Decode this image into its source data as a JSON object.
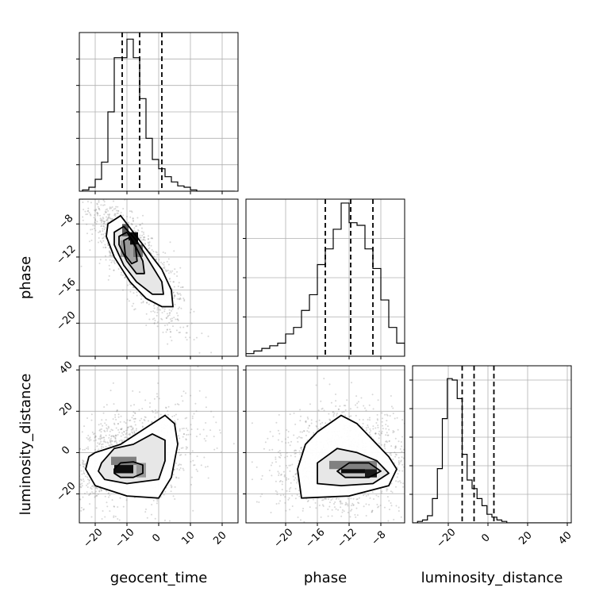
{
  "chart_data": [
    {
      "type": "histogram",
      "panel": "geocent_time",
      "bin_start": -24,
      "bin_width": 2,
      "counts": [
        1,
        3,
        9,
        22,
        60,
        101,
        101,
        115,
        101,
        70,
        40,
        24,
        17,
        11,
        7,
        4,
        3,
        1,
        0,
        0,
        0,
        0,
        0,
        0
      ],
      "xlim": [
        -25,
        25
      ],
      "ylim": [
        0,
        120
      ],
      "quantiles": [
        -11.5,
        -6.0,
        1.0
      ],
      "xticks": [
        -20,
        -10,
        0,
        10,
        20
      ],
      "yticks": [
        20,
        40,
        60,
        80,
        100
      ]
    },
    {
      "type": "scatter",
      "panel": "phase vs geocent_time",
      "xlim": [
        -25,
        25
      ],
      "ylim": [
        -24,
        -5
      ],
      "xticks": [
        -20,
        -10,
        0,
        10,
        20
      ],
      "yticks": [
        -8,
        -12,
        -16,
        -20
      ],
      "ytick_labels": [
        "−8",
        "−12",
        "−16",
        "−20"
      ],
      "ylabel": "phase",
      "hist2d_blocks": [
        {
          "x": -9.5,
          "y": -10.5,
          "w": 3,
          "h": 1.5,
          "gray": 0.05
        },
        {
          "x": -11.5,
          "y": -9.5,
          "w": 2,
          "h": 1.5,
          "gray": 0.35
        },
        {
          "x": -8,
          "y": -12,
          "w": 3,
          "h": 1.5,
          "gray": 0.45
        },
        {
          "x": -12,
          "y": -12,
          "w": 3,
          "h": 2,
          "gray": 0.6
        }
      ],
      "contours": [
        [
          [
            -16,
            -8
          ],
          [
            -12,
            -7
          ],
          [
            -8,
            -9
          ],
          [
            -4,
            -11
          ],
          [
            1,
            -13.5
          ],
          [
            4,
            -16
          ],
          [
            4.5,
            -18
          ],
          [
            1,
            -18
          ],
          [
            -4,
            -17
          ],
          [
            -9,
            -15
          ],
          [
            -14,
            -12
          ],
          [
            -16.5,
            -9.5
          ],
          [
            -16,
            -8
          ]
        ],
        [
          [
            -14,
            -9
          ],
          [
            -11,
            -8.3
          ],
          [
            -7,
            -10
          ],
          [
            -3,
            -12.5
          ],
          [
            1,
            -15
          ],
          [
            1.5,
            -16.5
          ],
          [
            -2,
            -16.5
          ],
          [
            -7,
            -15
          ],
          [
            -11,
            -13
          ],
          [
            -14,
            -10.5
          ],
          [
            -14,
            -9
          ]
        ],
        [
          [
            -12.5,
            -9.5
          ],
          [
            -10,
            -9
          ],
          [
            -7.5,
            -10.5
          ],
          [
            -5,
            -12.5
          ],
          [
            -4.5,
            -14
          ],
          [
            -7,
            -14
          ],
          [
            -10,
            -12.5
          ],
          [
            -12.5,
            -10.5
          ],
          [
            -12.5,
            -9.5
          ]
        ],
        [
          [
            -11,
            -10
          ],
          [
            -9,
            -9.6
          ],
          [
            -7.3,
            -10.8
          ],
          [
            -6.8,
            -12.5
          ],
          [
            -8.5,
            -12.8
          ],
          [
            -10.5,
            -11.8
          ],
          [
            -11,
            -10
          ]
        ]
      ]
    },
    {
      "type": "histogram",
      "panel": "phase",
      "bin_start": -26,
      "bin_width": 1,
      "counts": [
        1,
        2,
        4,
        6,
        8,
        10,
        17,
        22,
        35,
        47,
        70,
        82,
        97,
        117,
        102,
        100,
        82,
        67,
        43,
        22,
        10,
        1
      ],
      "xlim": [
        -25,
        -5
      ],
      "ylim": [
        0,
        120
      ],
      "quantiles": [
        -15.0,
        -11.8,
        -9.0
      ],
      "xticks": [
        -20,
        -16,
        -12,
        -8
      ],
      "yticks": [
        30,
        60,
        90
      ]
    },
    {
      "type": "scatter",
      "panel": "luminosity_distance vs geocent_time",
      "xlim": [
        -25,
        25
      ],
      "ylim": [
        -34,
        42
      ],
      "xticks": [
        -20,
        -10,
        0,
        10,
        20
      ],
      "xtick_labels": [
        "−20",
        "−10",
        "0",
        "10",
        "20"
      ],
      "yticks": [
        40,
        20,
        0,
        -20
      ],
      "ytick_labels": [
        "40",
        "20",
        "0",
        "−20"
      ],
      "xlabel": "geocent_time",
      "ylabel": "luminosity_distance",
      "hist2d_blocks": [
        {
          "x": -14,
          "y": -10,
          "w": 6,
          "h": 4,
          "gray": 0.05
        },
        {
          "x": -15,
          "y": -6,
          "w": 8,
          "h": 4,
          "gray": 0.5
        },
        {
          "x": -7,
          "y": -12,
          "w": 3,
          "h": 7,
          "gray": 0.6
        }
      ],
      "contours": [
        [
          [
            -22,
            -2
          ],
          [
            -20,
            0
          ],
          [
            -12,
            4
          ],
          [
            -4,
            12
          ],
          [
            2,
            18
          ],
          [
            5,
            14
          ],
          [
            6,
            4
          ],
          [
            4,
            -12
          ],
          [
            0,
            -22
          ],
          [
            -10,
            -21
          ],
          [
            -20,
            -16
          ],
          [
            -23,
            -8
          ],
          [
            -22,
            -2
          ]
        ],
        [
          [
            -18,
            -5
          ],
          [
            -14,
            2
          ],
          [
            -8,
            4
          ],
          [
            -2,
            9
          ],
          [
            2,
            6
          ],
          [
            2,
            -4
          ],
          [
            0,
            -13
          ],
          [
            -10,
            -15
          ],
          [
            -17,
            -13
          ],
          [
            -19,
            -9
          ],
          [
            -18,
            -5
          ]
        ],
        [
          [
            -14,
            -8
          ],
          [
            -12,
            -5
          ],
          [
            -8,
            -4.5
          ],
          [
            -5,
            -6
          ],
          [
            -5,
            -10
          ],
          [
            -8,
            -12
          ],
          [
            -12,
            -12
          ],
          [
            -14,
            -10
          ],
          [
            -14,
            -8
          ]
        ]
      ]
    },
    {
      "type": "scatter",
      "panel": "luminosity_distance vs phase",
      "xlim": [
        -25,
        -5
      ],
      "ylim": [
        -34,
        42
      ],
      "xticks": [
        -20,
        -16,
        -12,
        -8
      ],
      "xtick_labels": [
        "−20",
        "−16",
        "−12",
        "−8"
      ],
      "yticks": [
        40,
        20,
        0,
        -20
      ],
      "xlabel": "phase",
      "hist2d_blocks": [
        {
          "x": -13,
          "y": -10,
          "w": 3,
          "h": 5,
          "gray": 0.05
        },
        {
          "x": -10,
          "y": -12,
          "w": 1.5,
          "h": 4,
          "gray": 0.1
        },
        {
          "x": -14.5,
          "y": -8,
          "w": 6,
          "h": 4,
          "gray": 0.5
        }
      ],
      "contours": [
        [
          [
            -18,
            -22
          ],
          [
            -18.5,
            -8
          ],
          [
            -17.5,
            4
          ],
          [
            -16,
            10
          ],
          [
            -13,
            18
          ],
          [
            -11,
            14
          ],
          [
            -9,
            6
          ],
          [
            -7,
            -2
          ],
          [
            -6,
            -8
          ],
          [
            -7,
            -16
          ],
          [
            -12,
            -21
          ],
          [
            -18,
            -22
          ]
        ],
        [
          [
            -16,
            -15
          ],
          [
            -16,
            -5
          ],
          [
            -13.5,
            2
          ],
          [
            -11,
            0
          ],
          [
            -8.5,
            -4
          ],
          [
            -7,
            -10
          ],
          [
            -9,
            -15
          ],
          [
            -13,
            -16
          ],
          [
            -16,
            -15
          ]
        ],
        [
          [
            -13.5,
            -9
          ],
          [
            -12,
            -5
          ],
          [
            -9.5,
            -5
          ],
          [
            -8,
            -9
          ],
          [
            -9.5,
            -12
          ],
          [
            -12.5,
            -12
          ],
          [
            -13.5,
            -9
          ]
        ]
      ]
    },
    {
      "type": "histogram",
      "panel": "luminosity_distance",
      "bin_start": -38,
      "bin_width": 2.5,
      "counts": [
        0,
        1,
        2,
        5,
        17,
        38,
        73,
        101,
        100,
        87,
        48,
        30,
        24,
        17,
        12,
        6,
        4,
        2,
        1,
        0,
        0,
        0,
        0,
        0,
        0,
        0,
        0,
        0,
        0,
        0,
        0,
        0
      ],
      "xlim": [
        -38,
        42
      ],
      "ylim": [
        0,
        110
      ],
      "quantiles": [
        -13.0,
        -7.0,
        3.0
      ],
      "xticks": [
        -20,
        0,
        20,
        40
      ],
      "xtick_labels": [
        "−20",
        "0",
        "20",
        "40"
      ],
      "yticks": [
        20,
        40,
        60,
        80,
        100
      ],
      "xlabel": "luminosity_distance"
    }
  ]
}
